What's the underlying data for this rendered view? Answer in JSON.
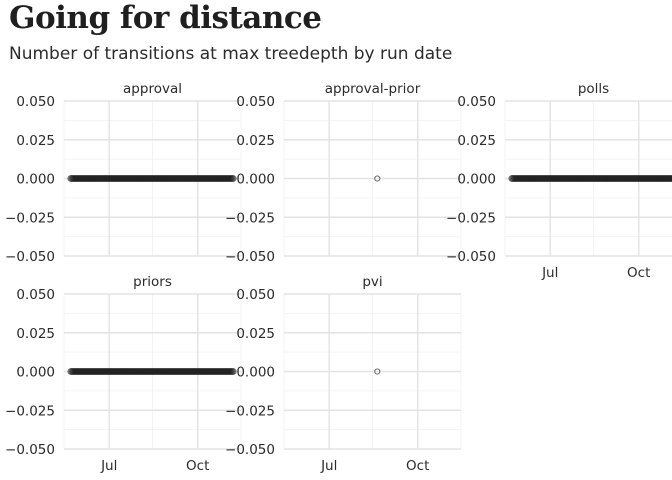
{
  "header": {
    "title": "Going for distance",
    "subtitle": "Number of transitions at max treedepth by run date"
  },
  "chart_data": {
    "type": "scatter",
    "facet_rows": 2,
    "facet_cols": 3,
    "ylim": [
      -0.05,
      0.05
    ],
    "y_ticks": [
      0.05,
      0.025,
      0,
      -0.025,
      -0.05
    ],
    "y_tick_labels": [
      "0.050",
      "0.025",
      "0.000",
      "−0.025",
      "−0.050"
    ],
    "xlim": [
      "2020-05-15",
      "2020-11-15"
    ],
    "x_ticks": [
      "2020-07-01",
      "2020-10-01"
    ],
    "x_tick_labels": [
      "Jul",
      "Oct"
    ],
    "panels": [
      {
        "name": "approval",
        "x_range": [
          "2020-05-22",
          "2020-11-07"
        ],
        "y": 0,
        "style": "dense"
      },
      {
        "name": "approval-prior",
        "x": [
          "2020-08-20"
        ],
        "y": [
          0
        ],
        "style": "single"
      },
      {
        "name": "polls",
        "x_range": [
          "2020-05-22",
          "2020-11-07"
        ],
        "y": 0,
        "style": "dense"
      },
      {
        "name": "priors",
        "x_range": [
          "2020-05-22",
          "2020-11-07"
        ],
        "y": 0,
        "style": "dense"
      },
      {
        "name": "pvi",
        "x": [
          "2020-08-20"
        ],
        "y": [
          0
        ],
        "style": "single"
      }
    ],
    "grid": true,
    "colors": {
      "points": "#1a1a1a",
      "grid_major": "#e3e3e3",
      "grid_minor": "#f0f0f0"
    }
  }
}
